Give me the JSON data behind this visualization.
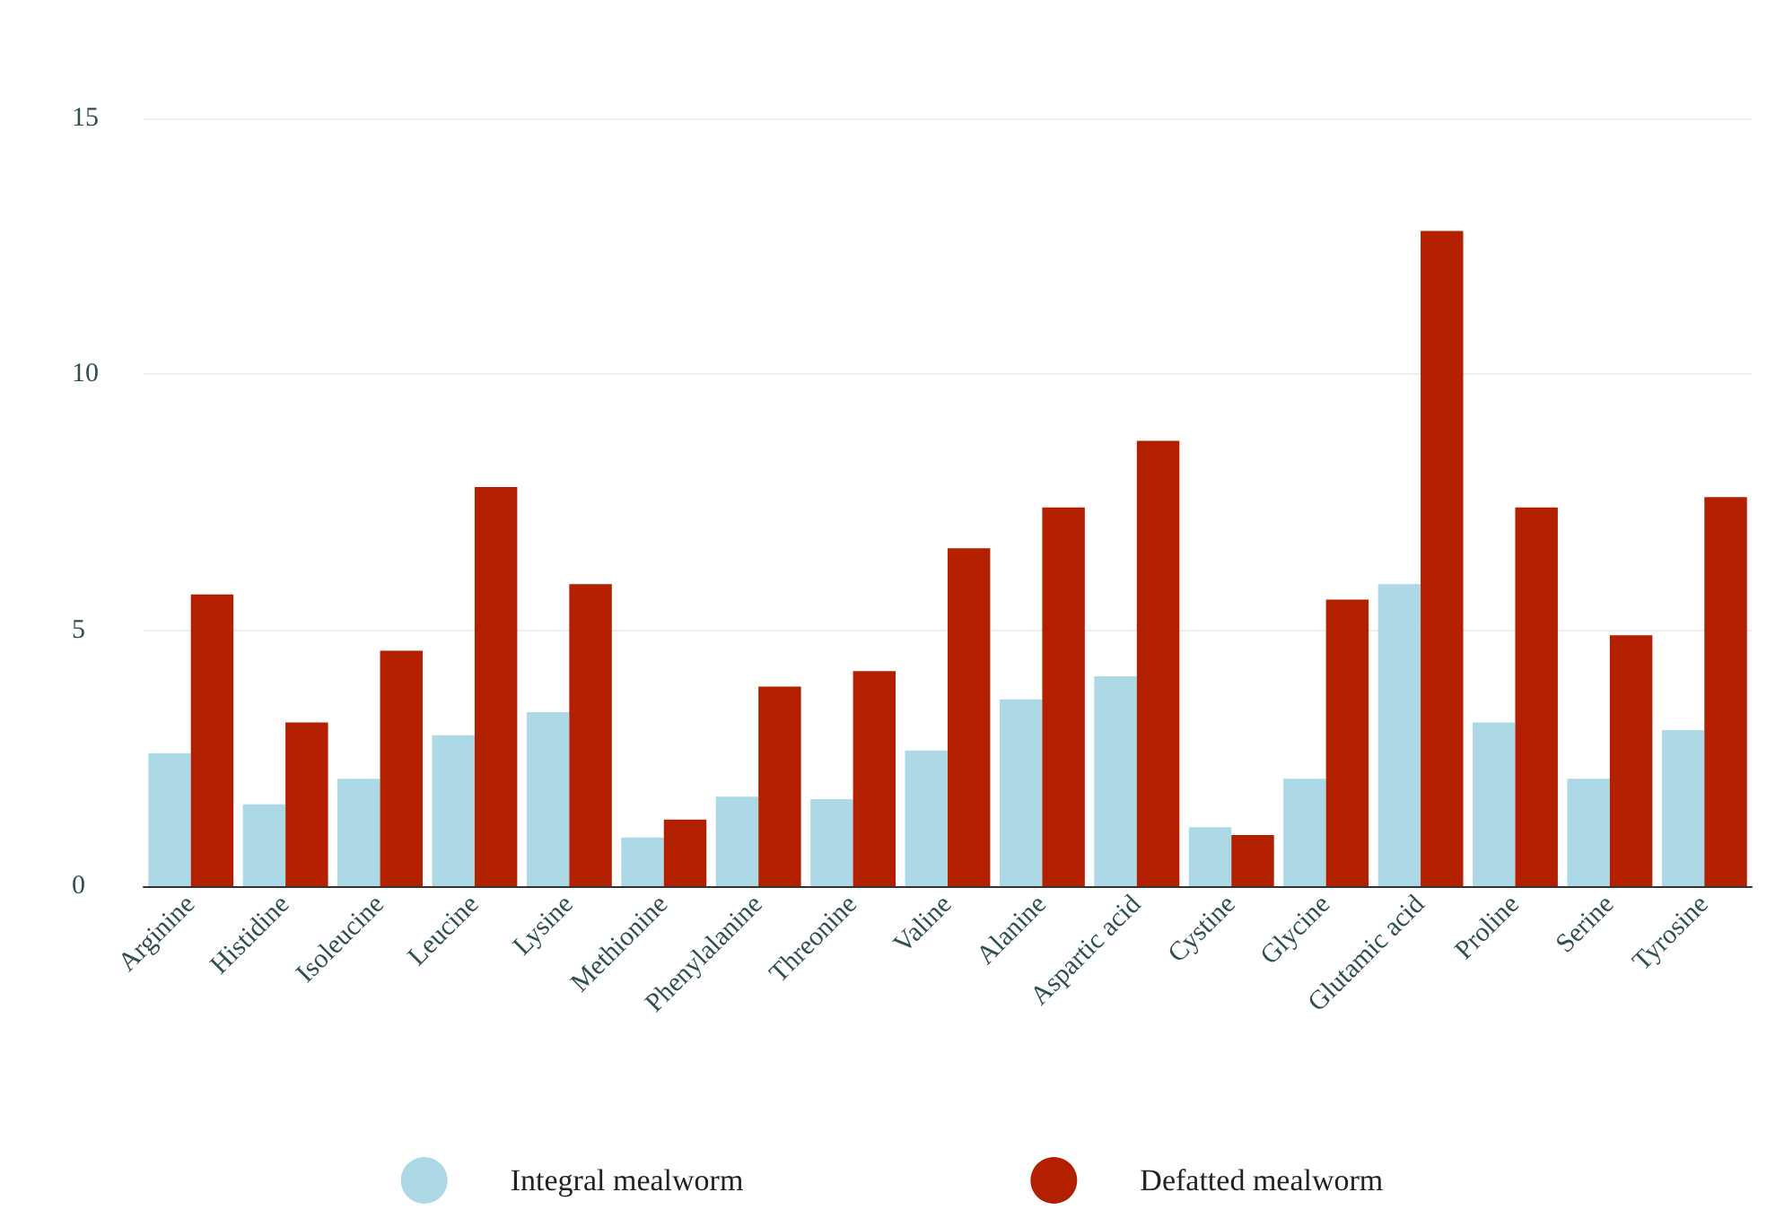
{
  "chart_data": {
    "type": "bar",
    "categories": [
      "Arginine",
      "Histidine",
      "Isoleucine",
      "Leucine",
      "Lysine",
      "Methionine",
      "Phenylalanine",
      "Threonine",
      "Valine",
      "Alanine",
      "Aspartic acid",
      "Cystine",
      "Glycine",
      "Glutamic acid",
      "Proline",
      "Serine",
      "Tyrosine"
    ],
    "series": [
      {
        "name": "Integral mealworm",
        "color": "#add8e6",
        "values": [
          2.6,
          1.6,
          2.1,
          2.95,
          3.4,
          0.95,
          1.75,
          1.7,
          2.65,
          3.65,
          4.1,
          1.15,
          2.1,
          5.9,
          3.2,
          2.1,
          3.05
        ]
      },
      {
        "name": "Defatted mealworm",
        "color": "#b22000",
        "values": [
          5.7,
          3.2,
          4.6,
          7.8,
          5.9,
          1.3,
          3.9,
          4.2,
          6.6,
          7.4,
          8.7,
          1.0,
          5.6,
          12.8,
          7.4,
          4.9,
          7.6
        ]
      }
    ],
    "ylim": [
      0,
      15
    ],
    "yticks": [
      0,
      5,
      10,
      15
    ],
    "grid": "y",
    "legend": "bottom",
    "marker": "circle"
  }
}
